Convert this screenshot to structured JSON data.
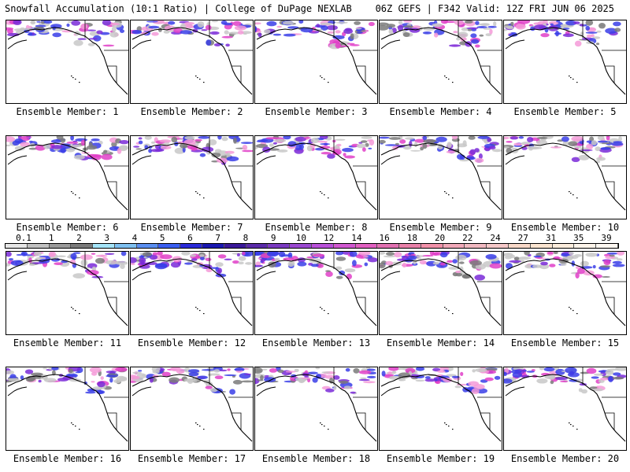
{
  "header": {
    "left_title": "Snowfall Accumulation (10:1 Ratio) | College of DuPage NEXLAB",
    "right_title": "06Z GEFS | F342 Valid: 12Z FRI JUN 06 2025"
  },
  "colors": {
    "snow_light": "#c8c8c8",
    "snow_mid": "#7a7a7a",
    "snow_blue": "#3a3ee8",
    "snow_purple": "#7a2ad8",
    "snow_magenta": "#e040c8",
    "snow_pink": "#f59ad8",
    "coast": "#000000"
  },
  "colorbar": {
    "labels": [
      "0.1",
      "1",
      "2",
      "3",
      "4",
      "5",
      "6",
      "7",
      "8",
      "9",
      "10",
      "12",
      "14",
      "16",
      "18",
      "20",
      "22",
      "24",
      "27",
      "31",
      "35",
      "39"
    ],
    "swatches": [
      "#e6e6e6",
      "#c0c0c0",
      "#9a9a9a",
      "#7a7a7a",
      "#a4e4f8",
      "#7ec0f0",
      "#5a8ef0",
      "#3a5ef0",
      "#2a2ad8",
      "#1a18b0",
      "#3a1898",
      "#5a2aa8",
      "#7a3ac0",
      "#9a48d0",
      "#b850d8",
      "#d058d0",
      "#e060c0",
      "#e070b0",
      "#e880a8",
      "#f090a8",
      "#f0a8b8",
      "#f0b8c0",
      "#f5c8c8",
      "#f8d8c8",
      "#fae4d0",
      "#fcecdc",
      "#fef4ea",
      "#fff8f2"
    ]
  },
  "members": [
    {
      "label": "Ensemble Member: 1"
    },
    {
      "label": "Ensemble Member: 2"
    },
    {
      "label": "Ensemble Member: 3"
    },
    {
      "label": "Ensemble Member: 4"
    },
    {
      "label": "Ensemble Member: 5"
    },
    {
      "label": "Ensemble Member: 6"
    },
    {
      "label": "Ensemble Member: 7"
    },
    {
      "label": "Ensemble Member: 8"
    },
    {
      "label": "Ensemble Member: 9"
    },
    {
      "label": "Ensemble Member: 10"
    },
    {
      "label": "Ensemble Member: 11"
    },
    {
      "label": "Ensemble Member: 12"
    },
    {
      "label": "Ensemble Member: 13"
    },
    {
      "label": "Ensemble Member: 14"
    },
    {
      "label": "Ensemble Member: 15"
    },
    {
      "label": "Ensemble Member: 16"
    },
    {
      "label": "Ensemble Member: 17"
    },
    {
      "label": "Ensemble Member: 18"
    },
    {
      "label": "Ensemble Member: 19"
    },
    {
      "label": "Ensemble Member: 20"
    }
  ]
}
